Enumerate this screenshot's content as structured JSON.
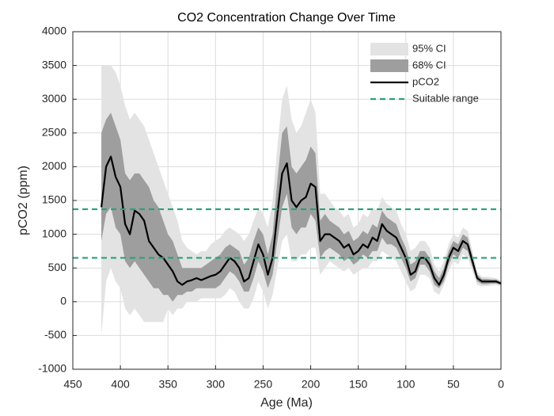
{
  "chart_data": {
    "type": "line",
    "title": "CO2 Concentration Change Over Time",
    "xlabel": "Age (Ma)",
    "ylabel": "pCO2 (ppm)",
    "xlim": [
      450,
      0
    ],
    "xticks": [
      450,
      400,
      350,
      300,
      250,
      200,
      150,
      100,
      50,
      0
    ],
    "ylim": [
      -1000,
      4000
    ],
    "yticks": [
      -1000,
      -500,
      0,
      500,
      1000,
      1500,
      2000,
      2500,
      3000,
      3500,
      4000
    ],
    "grid": true,
    "legend": "upper right",
    "x": [
      420,
      415,
      410,
      405,
      400,
      395,
      390,
      385,
      380,
      375,
      370,
      365,
      360,
      355,
      350,
      345,
      340,
      335,
      330,
      325,
      320,
      315,
      310,
      305,
      300,
      295,
      290,
      285,
      280,
      275,
      270,
      265,
      260,
      255,
      250,
      245,
      240,
      235,
      230,
      225,
      220,
      215,
      210,
      205,
      200,
      195,
      190,
      185,
      180,
      175,
      170,
      165,
      160,
      155,
      150,
      145,
      140,
      135,
      130,
      125,
      120,
      115,
      110,
      105,
      100,
      95,
      90,
      85,
      80,
      75,
      70,
      65,
      60,
      55,
      50,
      45,
      40,
      35,
      30,
      25,
      20,
      15,
      10,
      5,
      0
    ],
    "series": [
      {
        "name": "95% CI",
        "color": "#e3e3e3",
        "lower": [
          -500,
          300,
          500,
          300,
          200,
          -100,
          -200,
          -100,
          -200,
          -300,
          -300,
          -300,
          -300,
          -300,
          -100,
          -200,
          -100,
          -100,
          0,
          0,
          0,
          50,
          50,
          50,
          50,
          50,
          100,
          200,
          150,
          0,
          -100,
          -100,
          50,
          300,
          150,
          -100,
          100,
          500,
          900,
          1000,
          600,
          600,
          700,
          700,
          800,
          800,
          400,
          500,
          600,
          550,
          500,
          450,
          500,
          400,
          450,
          500,
          500,
          600,
          600,
          750,
          700,
          650,
          600,
          450,
          300,
          150,
          200,
          400,
          400,
          350,
          150,
          100,
          250,
          450,
          600,
          550,
          700,
          650,
          450,
          250,
          230,
          230,
          240,
          250,
          230
        ],
        "upper": [
          3500,
          3500,
          3500,
          3400,
          3200,
          2900,
          2700,
          2800,
          2700,
          2600,
          2400,
          2200,
          2000,
          1800,
          1600,
          1400,
          1200,
          900,
          800,
          750,
          700,
          750,
          750,
          850,
          900,
          950,
          1050,
          1100,
          1050,
          1000,
          900,
          1000,
          1200,
          1400,
          1300,
          1100,
          1500,
          2300,
          3000,
          3200,
          2700,
          2500,
          2600,
          2800,
          3000,
          2800,
          1600,
          1600,
          1500,
          1400,
          1350,
          1250,
          1300,
          1100,
          1150,
          1300,
          1250,
          1400,
          1350,
          1550,
          1450,
          1400,
          1350,
          1150,
          1000,
          750,
          800,
          900,
          900,
          800,
          550,
          450,
          600,
          850,
          1000,
          950,
          1100,
          1050,
          750,
          450,
          370,
          370,
          360,
          350,
          310
        ]
      },
      {
        "name": "68% CI",
        "color": "#9e9e9e",
        "lower": [
          900,
          1300,
          1400,
          1100,
          1000,
          600,
          500,
          600,
          500,
          400,
          300,
          200,
          200,
          100,
          100,
          0,
          100,
          100,
          150,
          150,
          200,
          200,
          200,
          200,
          200,
          250,
          350,
          450,
          400,
          300,
          150,
          150,
          350,
          600,
          450,
          200,
          400,
          900,
          1400,
          1600,
          1100,
          1000,
          1100,
          1100,
          1300,
          1200,
          650,
          750,
          800,
          750,
          700,
          600,
          650,
          550,
          600,
          700,
          650,
          750,
          750,
          950,
          850,
          850,
          800,
          650,
          500,
          300,
          350,
          550,
          550,
          450,
          250,
          200,
          300,
          550,
          700,
          650,
          800,
          750,
          520,
          300,
          260,
          260,
          270,
          270,
          250
        ],
        "upper": [
          2500,
          2700,
          2800,
          2600,
          2400,
          1900,
          1800,
          1900,
          1900,
          1800,
          1700,
          1500,
          1400,
          1200,
          1000,
          900,
          700,
          500,
          500,
          500,
          500,
          500,
          550,
          600,
          650,
          700,
          800,
          850,
          800,
          750,
          550,
          650,
          900,
          1100,
          1000,
          700,
          1000,
          1800,
          2500,
          2600,
          2000,
          1900,
          2000,
          2100,
          2300,
          2200,
          1200,
          1300,
          1200,
          1150,
          1100,
          1000,
          1050,
          900,
          950,
          1050,
          1000,
          1150,
          1100,
          1350,
          1250,
          1200,
          1150,
          950,
          800,
          550,
          600,
          750,
          750,
          650,
          450,
          350,
          500,
          750,
          900,
          850,
          1000,
          950,
          680,
          400,
          340,
          340,
          330,
          330,
          290
        ]
      },
      {
        "name": "pCO2",
        "color": "#000000",
        "values": [
          1400,
          2000,
          2150,
          1850,
          1700,
          1150,
          1000,
          1350,
          1300,
          1200,
          900,
          800,
          700,
          650,
          550,
          450,
          300,
          250,
          300,
          320,
          350,
          320,
          350,
          380,
          400,
          450,
          550,
          650,
          600,
          500,
          300,
          350,
          600,
          850,
          700,
          400,
          650,
          1300,
          1900,
          2050,
          1500,
          1400,
          1500,
          1550,
          1750,
          1700,
          900,
          1000,
          1000,
          950,
          900,
          800,
          850,
          700,
          750,
          850,
          800,
          950,
          900,
          1150,
          1050,
          1000,
          950,
          800,
          650,
          400,
          450,
          650,
          650,
          550,
          350,
          250,
          400,
          650,
          800,
          750,
          900,
          850,
          600,
          350,
          300,
          300,
          300,
          300,
          270
        ]
      }
    ],
    "reference": {
      "name": "Suitable range",
      "color": "#2ca07a",
      "values": [
        650,
        1370
      ]
    }
  }
}
